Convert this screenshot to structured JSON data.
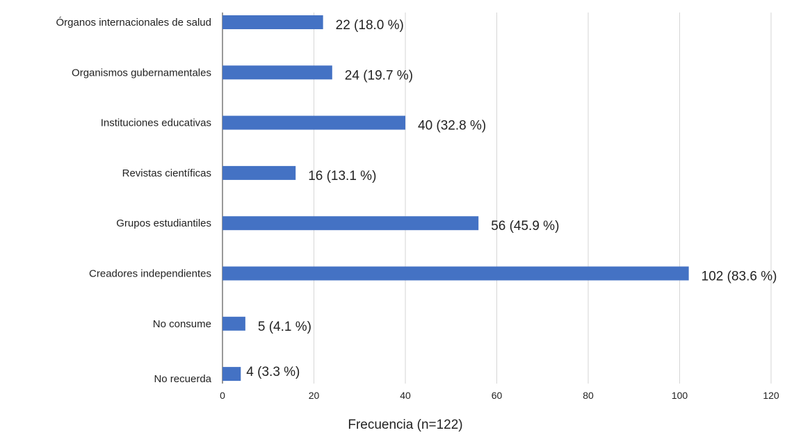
{
  "chart_data": {
    "type": "bar",
    "orientation": "horizontal",
    "categories": [
      "Órganos internacionales de salud",
      "Organismos gubernamentales",
      "Instituciones educativas",
      "Revistas científicas",
      "Grupos estudiantiles",
      "Creadores independientes",
      "No consume",
      "No recuerda"
    ],
    "values": [
      22,
      24,
      40,
      16,
      56,
      102,
      5,
      4
    ],
    "data_labels": [
      "22 (18.0 %)",
      "24 (19.7 %)",
      "40 (32.8 %)",
      "16 (13.1 %)",
      "56 (45.9 %)",
      "102 (83.6 %)",
      "5 (4.1 %)",
      "4 (3.3 %)"
    ],
    "xlabel": "Frecuencia (n=122)",
    "ylabel": "",
    "xlim": [
      0,
      120
    ],
    "xticks": [
      0,
      20,
      40,
      60,
      80,
      100,
      120
    ],
    "grid": "vertical",
    "bar_color": "#4472c4",
    "grid_color": "#d6d6d6"
  }
}
